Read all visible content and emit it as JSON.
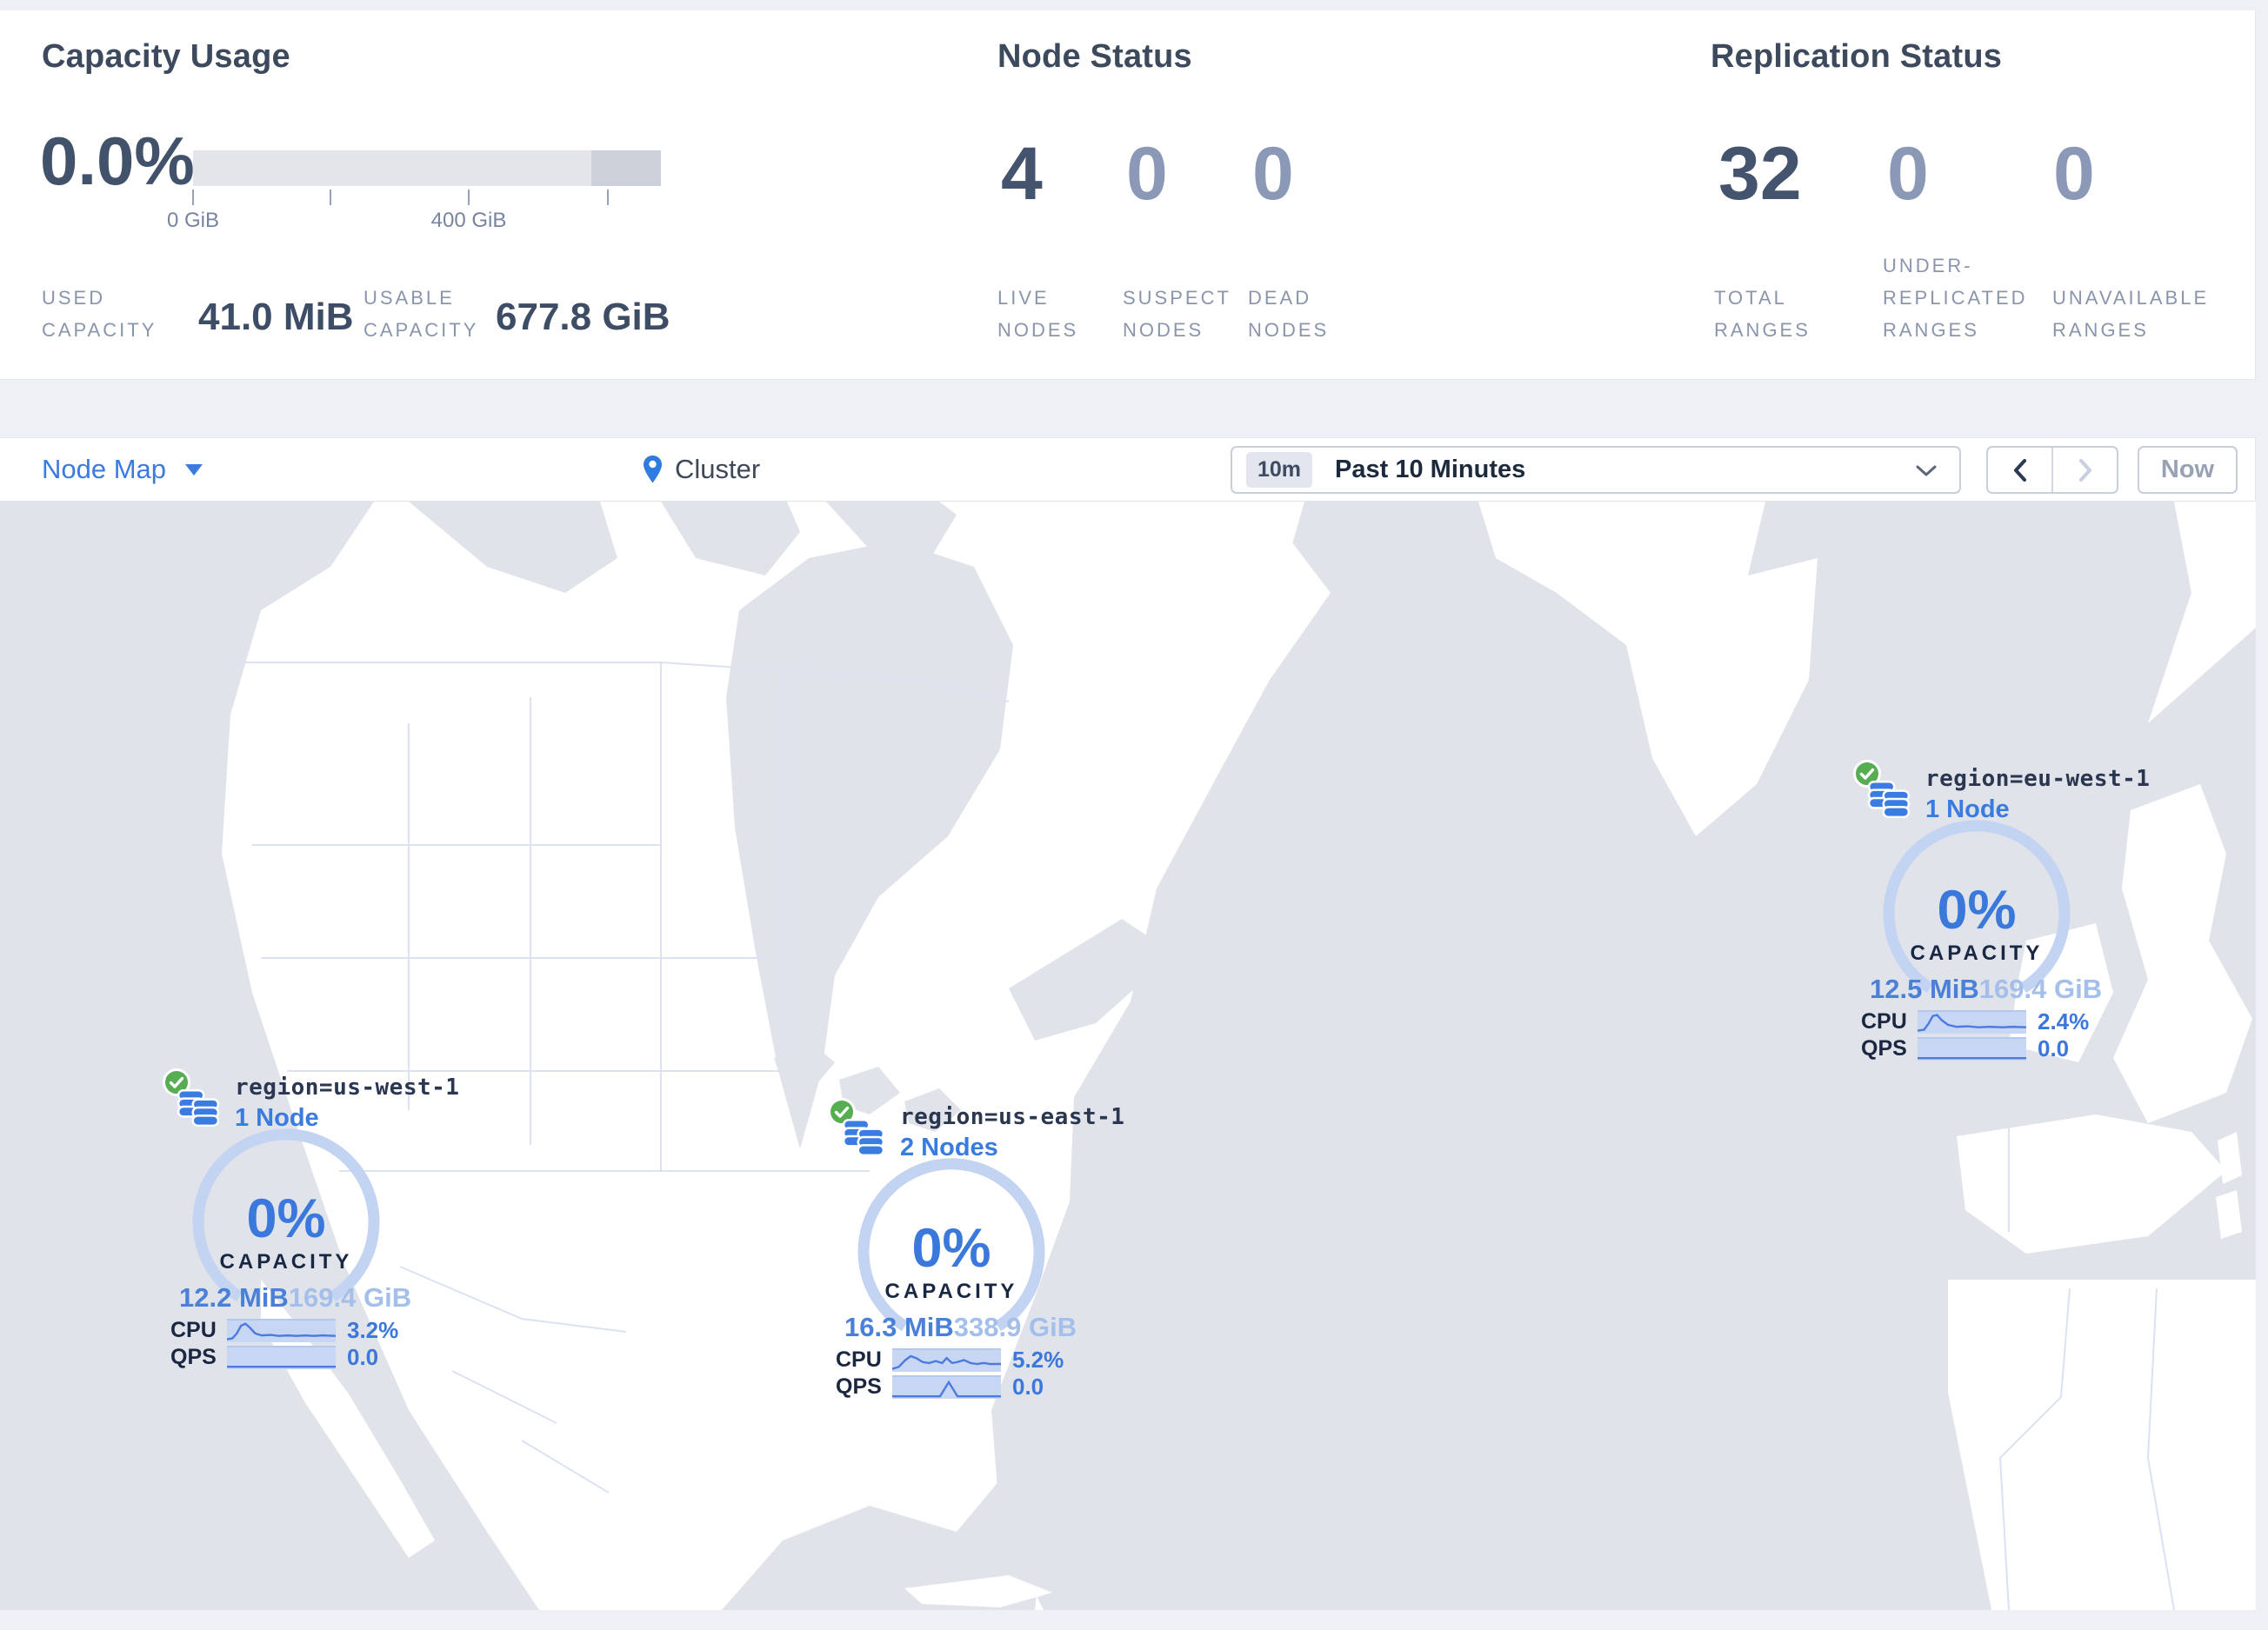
{
  "colors": {
    "accent_blue": "#3a7be0",
    "value_blue": "#3c78dc",
    "faded_blue": "#a4bfea",
    "gauge": "#c3d3f2",
    "spark_bg": "#c7d6f3",
    "spark_edge": "#b0c3ec",
    "spark_line": "#4c7ade",
    "green_ok": "#57ad52",
    "water_gray": "#e0e3ea",
    "bar_light": "#e3e5eb",
    "bar_dark": "#cdd1da"
  },
  "header": {
    "capacity": {
      "title": "Capacity Usage",
      "percent": "0.0%",
      "tick_label_0": "0 GiB",
      "tick_label_400": "400 GiB",
      "used_label": "USED CAPACITY",
      "used_value": "41.0 MiB",
      "usable_label": "USABLE CAPACITY",
      "usable_value": "677.8 GiB"
    },
    "nodes": {
      "title": "Node Status",
      "stats": [
        {
          "value": "4",
          "label": "LIVE NODES"
        },
        {
          "value": "0",
          "label": "SUSPECT NODES"
        },
        {
          "value": "0",
          "label": "DEAD NODES"
        }
      ]
    },
    "replication": {
      "title": "Replication Status",
      "stats": [
        {
          "value": "32",
          "label": "TOTAL RANGES"
        },
        {
          "value": "0",
          "label": "UNDER-REPLICATED RANGES"
        },
        {
          "value": "0",
          "label": "UNAVAILABLE RANGES"
        }
      ]
    }
  },
  "toolbar": {
    "view_selector": "Node Map",
    "breadcrumb": "Cluster",
    "time_badge": "10m",
    "time_label": "Past 10 Minutes",
    "now": "Now"
  },
  "map": {
    "regions": [
      {
        "label": "region=us-west-1",
        "nodes": "1 Node",
        "percent": "0%",
        "capacity_label": "CAPACITY",
        "used": "12.2 MiB",
        "total": "169.4 GiB",
        "cpu_label": "CPU",
        "cpu_value": "3.2%",
        "qps_label": "QPS",
        "qps_value": "0.0",
        "cpu_spark": [
          [
            0,
            21
          ],
          [
            5,
            20
          ],
          [
            9,
            15
          ],
          [
            13,
            7
          ],
          [
            17,
            5
          ],
          [
            21,
            9
          ],
          [
            26,
            15
          ],
          [
            32,
            17
          ],
          [
            40,
            16.5
          ],
          [
            48,
            17.5
          ],
          [
            56,
            17
          ],
          [
            64,
            17.5
          ],
          [
            72,
            17
          ],
          [
            80,
            17.5
          ],
          [
            88,
            17
          ],
          [
            100,
            17.5
          ]
        ],
        "qps_spark": [
          [
            0,
            21.5
          ],
          [
            100,
            21.5
          ]
        ]
      },
      {
        "label": "region=us-east-1",
        "nodes": "2 Nodes",
        "percent": "0%",
        "capacity_label": "CAPACITY",
        "used": "16.3 MiB",
        "total": "338.9 GiB",
        "cpu_label": "CPU",
        "cpu_value": "5.2%",
        "qps_label": "QPS",
        "qps_value": "0.0",
        "cpu_spark": [
          [
            0,
            21
          ],
          [
            6,
            19
          ],
          [
            12,
            12
          ],
          [
            17,
            8
          ],
          [
            22,
            10
          ],
          [
            28,
            14
          ],
          [
            34,
            15
          ],
          [
            40,
            13
          ],
          [
            46,
            15
          ],
          [
            50,
            10
          ],
          [
            55,
            15
          ],
          [
            60,
            14
          ],
          [
            66,
            12
          ],
          [
            72,
            15
          ],
          [
            78,
            16
          ],
          [
            84,
            15
          ],
          [
            90,
            16
          ],
          [
            100,
            16
          ]
        ],
        "qps_spark": [
          [
            0,
            21.5
          ],
          [
            44,
            21.5
          ],
          [
            52,
            7
          ],
          [
            60,
            21.5
          ],
          [
            100,
            21.5
          ]
        ]
      },
      {
        "label": "region=eu-west-1",
        "nodes": "1 Node",
        "percent": "0%",
        "capacity_label": "CAPACITY",
        "used": "12.5 MiB",
        "total": "169.4 GiB",
        "cpu_label": "CPU",
        "cpu_value": "2.4%",
        "qps_label": "QPS",
        "qps_value": "0.0",
        "cpu_spark": [
          [
            0,
            21
          ],
          [
            6,
            20
          ],
          [
            10,
            14
          ],
          [
            14,
            6
          ],
          [
            18,
            5
          ],
          [
            22,
            10
          ],
          [
            28,
            15
          ],
          [
            36,
            17
          ],
          [
            46,
            16.5
          ],
          [
            56,
            17.5
          ],
          [
            66,
            17
          ],
          [
            78,
            17.5
          ],
          [
            88,
            17
          ],
          [
            100,
            17.5
          ]
        ],
        "qps_spark": [
          [
            0,
            21.5
          ],
          [
            100,
            21.5
          ]
        ]
      }
    ]
  }
}
